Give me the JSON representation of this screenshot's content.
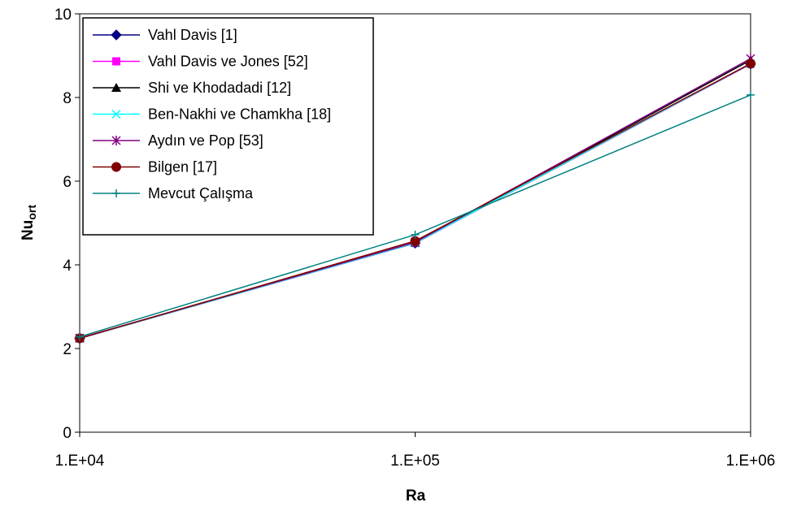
{
  "chart_data": {
    "type": "line",
    "x_scale": "log",
    "x": [
      10000,
      100000,
      1000000
    ],
    "x_tick_labels": [
      "1.E+04",
      "1.E+05",
      "1.E+06"
    ],
    "xlabel": "Ra",
    "ylabel": {
      "main": "Nu",
      "subscript": "ort"
    },
    "ylim": [
      0,
      10
    ],
    "y_ticks": [
      0,
      2,
      4,
      6,
      8,
      10
    ],
    "grid": false,
    "legend_position": "top-left",
    "series": [
      {
        "name": "Vahl Davis [1]",
        "values": [
          2.243,
          4.519,
          8.799
        ],
        "color": "#000080",
        "marker": "diamond"
      },
      {
        "name": "Vahl Davis ve Jones [52]",
        "values": [
          2.243,
          4.521,
          8.8
        ],
        "color": "#ff00ff",
        "marker": "square"
      },
      {
        "name": "Shi ve Khodadadi [12]",
        "values": [
          2.247,
          4.532,
          8.893
        ],
        "color": "#000000",
        "marker": "triangle"
      },
      {
        "name": "Ben-Nakhi ve Chamkha [18]",
        "values": [
          2.244,
          4.523,
          8.806
        ],
        "color": "#00ffff",
        "marker": "x"
      },
      {
        "name": "Aydın ve Pop [53]",
        "values": [
          2.25,
          4.54,
          8.93
        ],
        "color": "#800080",
        "marker": "star"
      },
      {
        "name": "Bilgen [17]",
        "values": [
          2.245,
          4.57,
          8.81
        ],
        "color": "#800000",
        "marker": "circle"
      },
      {
        "name": "Mevcut Çalışma",
        "values": [
          2.28,
          4.72,
          8.06
        ],
        "color": "#008080",
        "marker": "plus"
      }
    ]
  }
}
